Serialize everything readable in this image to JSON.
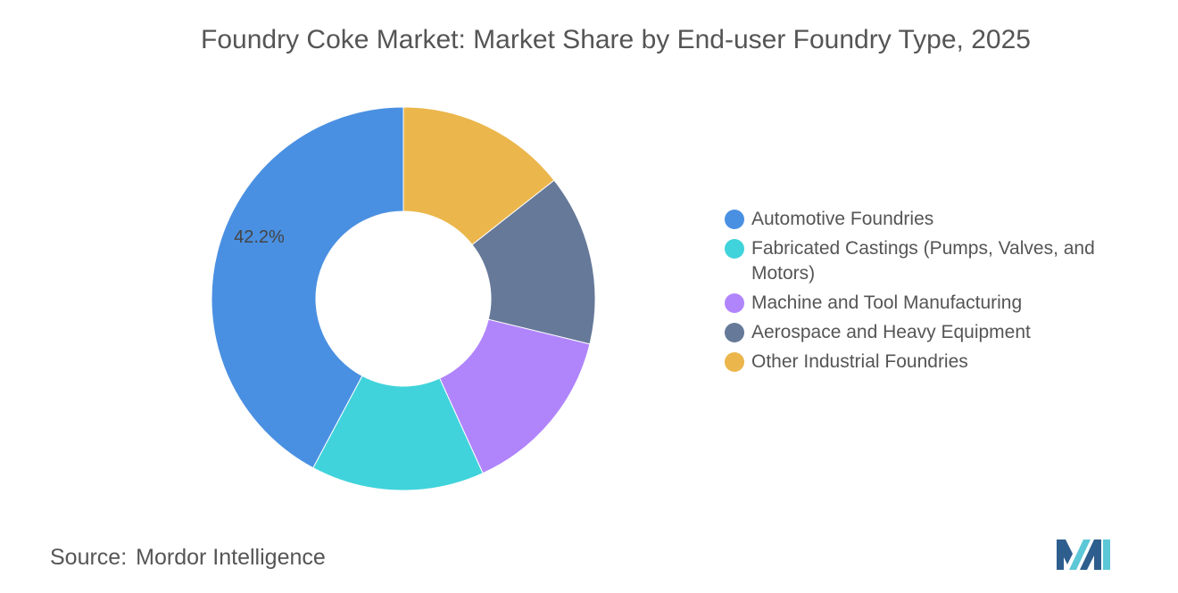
{
  "chart_data": {
    "type": "pie",
    "variant": "donut",
    "title": "Foundry Coke Market: Market Share by End-user Foundry Type, 2025",
    "slices": [
      {
        "name": "Automotive Foundries",
        "value": 42.2,
        "label": "42.2%",
        "color": "#4A90E2"
      },
      {
        "name": "Fabricated Castings (Pumps, Valves, and Motors)",
        "value": 14.6,
        "label": "",
        "color": "#40D3DB"
      },
      {
        "name": "Machine and Tool Manufacturing",
        "value": 14.4,
        "label": "",
        "color": "#B085FC"
      },
      {
        "name": "Aerospace and Heavy Equipment",
        "value": 14.4,
        "label": "",
        "color": "#667999"
      },
      {
        "name": "Other Industrial Foundries",
        "value": 14.4,
        "label": "",
        "color": "#EBB64B"
      }
    ],
    "legend_position": "right"
  },
  "source": {
    "label": "Source:",
    "text": "Mordor Intelligence"
  },
  "logo": {
    "icon": "mordor-intelligence-logo-icon",
    "colors": [
      "#2E5E8E",
      "#5CC7D6"
    ]
  }
}
